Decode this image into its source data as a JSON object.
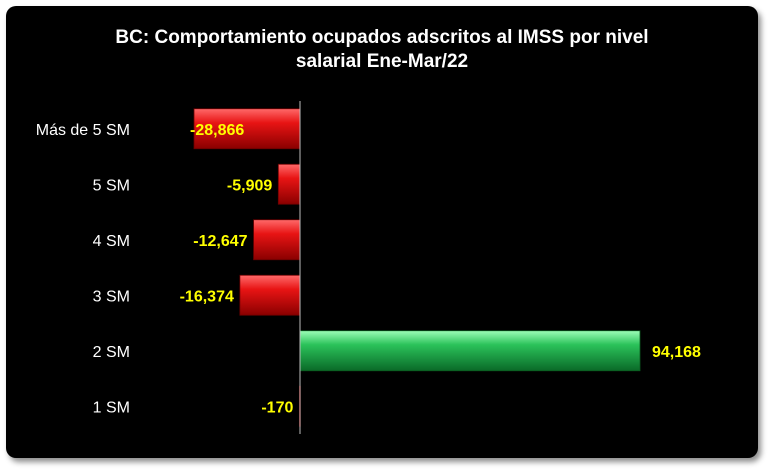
{
  "chart_data": {
    "type": "bar",
    "orientation": "horizontal",
    "title_lines": [
      "BC: Comportamiento ocupados adscritos al IMSS por nivel",
      "salarial Ene-Mar/22"
    ],
    "categories": [
      "Más de 5 SM",
      "5 SM",
      "4 SM",
      "3 SM",
      "2 SM",
      "1 SM"
    ],
    "values": [
      -28866,
      -5909,
      -12647,
      -16374,
      94168,
      -170
    ],
    "value_labels": [
      "-28,866",
      "-5,909",
      "-12,647",
      "-16,374",
      "94,168",
      "-170"
    ],
    "colors": {
      "negative": "#dd1111",
      "positive": "#22b14c",
      "background": "#000000",
      "label": "#ffff00",
      "axis_text": "#ffffff"
    },
    "xlim": [
      -28866,
      94168
    ],
    "grid": false,
    "legend": "none"
  }
}
